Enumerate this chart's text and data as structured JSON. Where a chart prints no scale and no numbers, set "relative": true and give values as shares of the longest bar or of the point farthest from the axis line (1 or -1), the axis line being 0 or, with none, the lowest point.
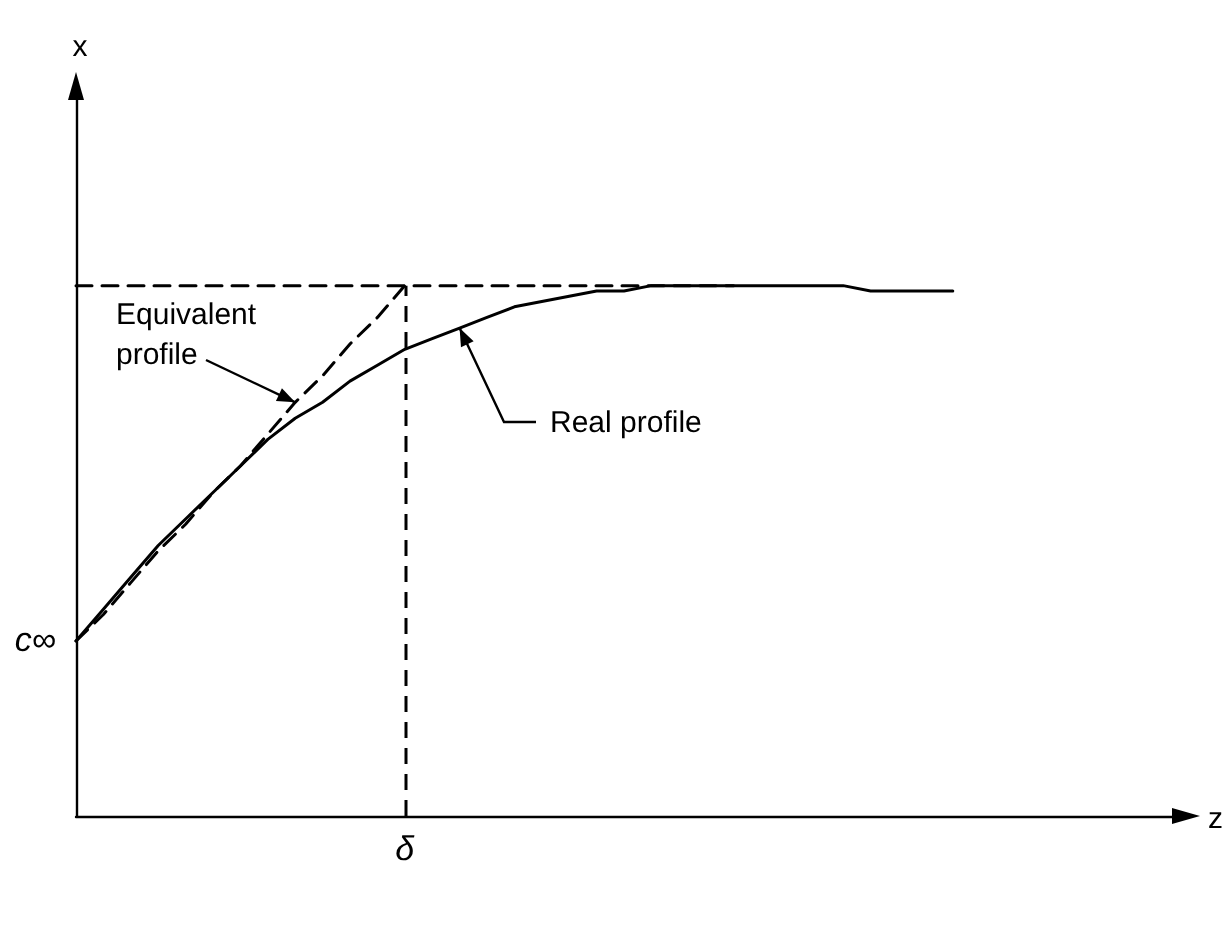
{
  "chart_data": {
    "type": "line",
    "relative": true,
    "grid": false,
    "marker": "none",
    "categories": [
      null,
      null,
      null,
      null,
      null,
      null,
      null,
      null,
      null,
      null,
      null,
      null,
      null,
      null,
      null,
      null,
      null,
      null,
      null,
      null,
      null,
      null,
      null,
      null,
      null,
      null,
      null,
      null,
      null,
      null,
      null,
      null,
      null,
      null,
      null,
      null,
      null,
      null,
      null,
      null,
      null
    ],
    "series": [
      {
        "color": "#000000",
        "line_style": "solid",
        "values": [
          0.33,
          0.39,
          0.45,
          0.51,
          0.56,
          0.61,
          0.66,
          0.71,
          0.75,
          0.78,
          0.82,
          0.85,
          0.88,
          0.9,
          0.92,
          0.94,
          0.96,
          0.97,
          0.98,
          0.99,
          0.99,
          1,
          1,
          1,
          1,
          1,
          1,
          1,
          1,
          0.99,
          0.99,
          0.99,
          0.99,
          null,
          null,
          null,
          null,
          null,
          null,
          null,
          null
        ]
      },
      {
        "color": "#000000",
        "line_style": "dashed",
        "values": [
          0.33,
          0.38,
          0.44,
          0.5,
          0.55,
          0.61,
          0.66,
          0.72,
          0.78,
          0.83,
          0.89,
          0.94,
          1,
          null,
          null,
          null,
          null,
          null,
          null,
          null,
          null,
          null,
          null,
          null,
          null,
          null,
          null,
          null,
          null,
          null,
          null,
          null,
          null,
          null,
          null,
          null,
          null,
          null,
          null,
          null,
          null
        ]
      },
      {
        "color": "#000000",
        "line_style": "dashed",
        "values": [
          1,
          1,
          1,
          1,
          1,
          1,
          1,
          1,
          1,
          1,
          1,
          1,
          1,
          1,
          1,
          1,
          1,
          1,
          1,
          1,
          1,
          1,
          1,
          1,
          1,
          null,
          null,
          null,
          null,
          null,
          null,
          null,
          null,
          null,
          null,
          null,
          null,
          null,
          null,
          null,
          null
        ]
      }
    ],
    "annotations": [
      "Equivalent profile",
      "Real profile",
      "c∞",
      "δ",
      "x",
      "z"
    ]
  }
}
